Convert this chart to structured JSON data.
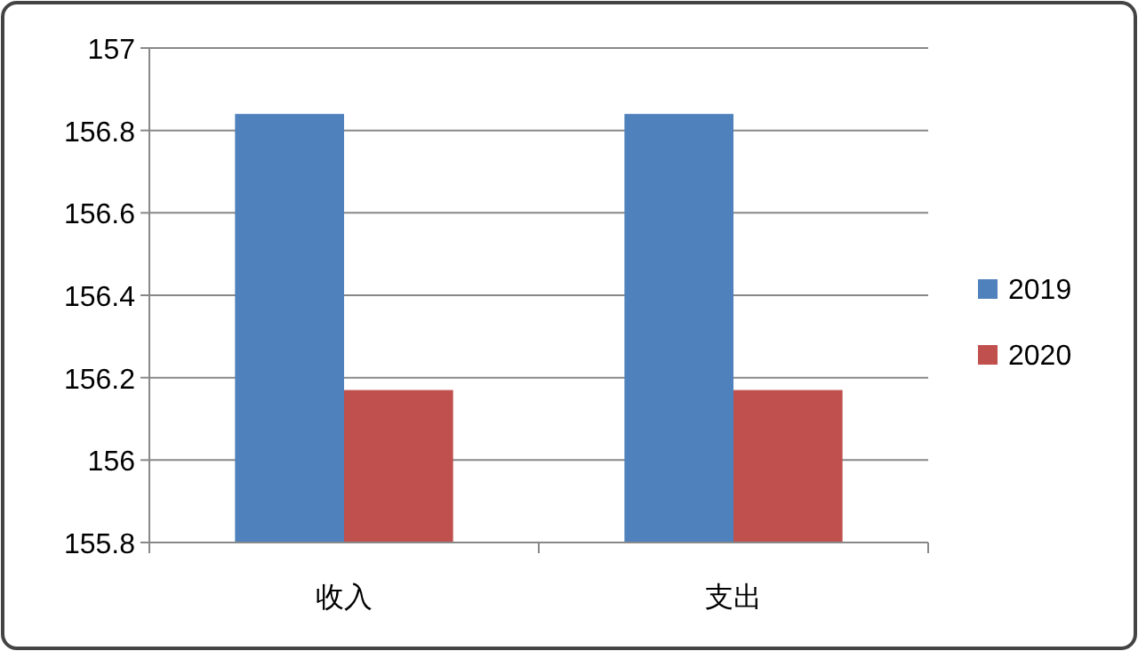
{
  "chart_data": {
    "type": "bar",
    "categories": [
      "收入",
      "支出"
    ],
    "series": [
      {
        "name": "2019",
        "color": "#4f81bd",
        "values": [
          156.84,
          156.84
        ]
      },
      {
        "name": "2020",
        "color": "#c0504d",
        "values": [
          156.17,
          156.17
        ]
      }
    ],
    "ylim": [
      155.8,
      157
    ],
    "yticks": [
      155.8,
      156,
      156.2,
      156.4,
      156.6,
      156.8,
      157
    ],
    "grid": "y",
    "legend": "right"
  }
}
